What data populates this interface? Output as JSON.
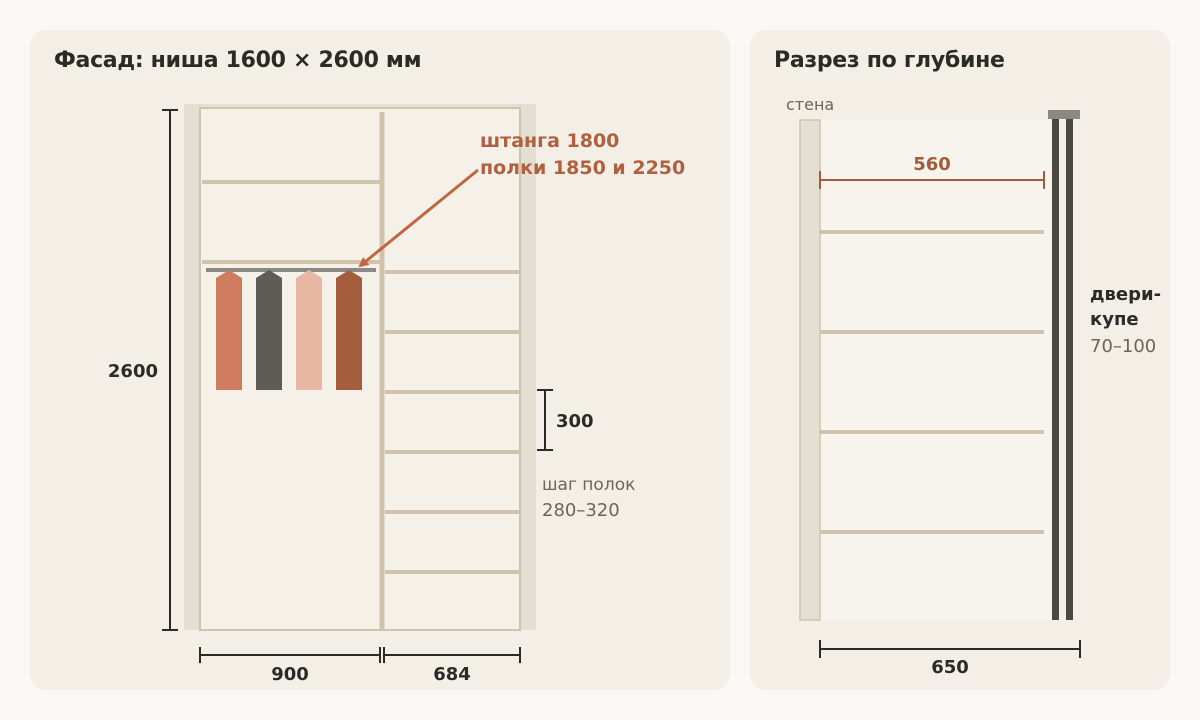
{
  "facade": {
    "title": "Фасад: ниша 1600 × 2600 мм",
    "height_label": "2600",
    "width_left_label": "900",
    "width_right_label": "684",
    "callout_line1": "штанга 1800",
    "callout_line2": "полки 1850 и 2250",
    "shelf_gap_label": "300",
    "shelf_step_label": "шаг полок",
    "shelf_step_range": "280–320",
    "hanger_colors": [
      "#cf7d5e",
      "#5f5b55",
      "#e7b7a3",
      "#a35d3d"
    ]
  },
  "section": {
    "title": "Разрез по глубине",
    "wall_label": "стена",
    "inner_depth_label": "560",
    "total_depth_label": "650",
    "doors_line1": "двери-",
    "doors_line2": "купе",
    "doors_range": "70–100"
  },
  "colors": {
    "accent": "#b0603f",
    "shelf": "#cfc3ac",
    "niche": "#e3dfd3",
    "interior": "#f5f1e9",
    "dark": "#2a2a28",
    "muted": "#6b655d"
  }
}
